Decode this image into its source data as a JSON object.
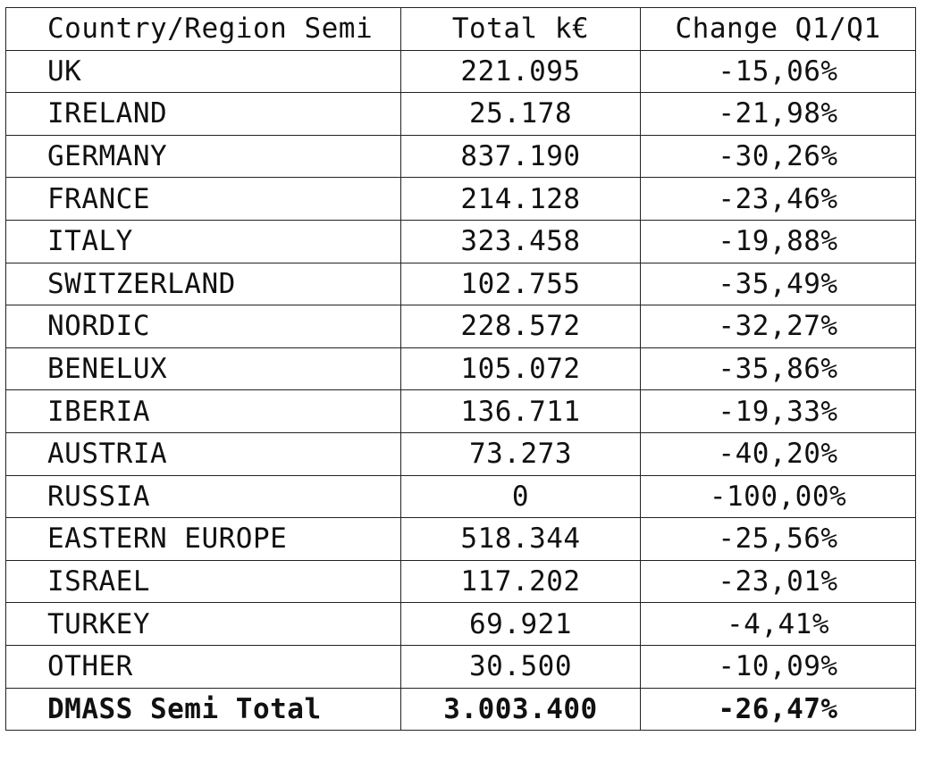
{
  "table": {
    "headers": [
      "Country/Region Semi",
      "Total k€",
      "Change Q1/Q1"
    ],
    "rows": [
      {
        "region": "UK",
        "total": "221.095",
        "change": "-15,06%"
      },
      {
        "region": "IRELAND",
        "total": "25.178",
        "change": "-21,98%"
      },
      {
        "region": "GERMANY",
        "total": "837.190",
        "change": "-30,26%"
      },
      {
        "region": "FRANCE",
        "total": "214.128",
        "change": "-23,46%"
      },
      {
        "region": "ITALY",
        "total": "323.458",
        "change": "-19,88%"
      },
      {
        "region": "SWITZERLAND",
        "total": "102.755",
        "change": "-35,49%"
      },
      {
        "region": "NORDIC",
        "total": "228.572",
        "change": "-32,27%"
      },
      {
        "region": "BENELUX",
        "total": "105.072",
        "change": "-35,86%"
      },
      {
        "region": "IBERIA",
        "total": "136.711",
        "change": "-19,33%"
      },
      {
        "region": "AUSTRIA",
        "total": "73.273",
        "change": "-40,20%"
      },
      {
        "region": "RUSSIA",
        "total": "0",
        "change": "-100,00%"
      },
      {
        "region": "EASTERN EUROPE",
        "total": "518.344",
        "change": "-25,56%"
      },
      {
        "region": "ISRAEL",
        "total": "117.202",
        "change": "-23,01%"
      },
      {
        "region": "TURKEY",
        "total": "69.921",
        "change": "-4,41%"
      },
      {
        "region": "OTHER",
        "total": "30.500",
        "change": "-10,09%"
      }
    ],
    "total_row": {
      "region": "DMASS Semi Total",
      "total": "3.003.400",
      "change": "-26,47%"
    }
  }
}
